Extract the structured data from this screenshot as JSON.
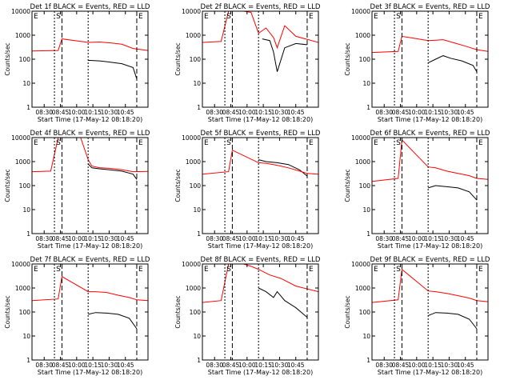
{
  "chart_data": [
    {
      "type": "line",
      "title": "Det 1f BLACK = Events, RED = LLD",
      "xlabel": "Start Time (17-May-12 08:18:20)",
      "ylabel": "Counts/sec",
      "yscale": "log",
      "ylim": [
        1,
        10000
      ],
      "xlim": [
        "08:20",
        "08:51"
      ],
      "x_ticks": [
        "08:30",
        "08:45",
        "10:00",
        "10:15",
        "10:30",
        "10:45"
      ],
      "y_ticks": [
        "1",
        "10",
        "100",
        "1000",
        "10000"
      ],
      "markers": [
        {
          "label": "E",
          "x": "08:20"
        },
        {
          "label": "S",
          "x": "08:26"
        },
        {
          "label": "",
          "x": "08:28"
        },
        {
          "label": "",
          "x": "08:35"
        },
        {
          "label": "E",
          "x": "08:48"
        },
        {
          "label": "",
          "x": "08:51"
        }
      ],
      "series": [
        {
          "name": "BLACK",
          "color": "#000000",
          "x": [
            "08:35",
            "08:38",
            "08:41",
            "08:44",
            "08:47",
            "08:48"
          ],
          "y": [
            90,
            85,
            75,
            65,
            45,
            15
          ]
        },
        {
          "name": "RED",
          "color": "#ff0000",
          "x": [
            "08:20",
            "08:27",
            "08:28",
            "08:35",
            "08:38",
            "08:41",
            "08:44",
            "08:47",
            "08:51"
          ],
          "y": [
            220,
            230,
            700,
            500,
            520,
            480,
            420,
            280,
            230
          ]
        }
      ]
    },
    {
      "type": "line",
      "title": "Det 2f BLACK = Events, RED = LLD",
      "xlabel": "Start Time (17-May-12 08:18:20)",
      "ylabel": "Counts/sec",
      "yscale": "log",
      "ylim": [
        1,
        10000
      ],
      "xlim": [
        "08:20",
        "08:51"
      ],
      "x_ticks": [
        "08:30",
        "08:45",
        "10:00",
        "10:15",
        "10:30",
        "10:45"
      ],
      "y_ticks": [
        "1",
        "10",
        "100",
        "1000",
        "10000"
      ],
      "markers": [
        {
          "label": "E",
          "x": "08:20"
        },
        {
          "label": "S",
          "x": "08:26"
        },
        {
          "label": "",
          "x": "08:28"
        },
        {
          "label": "",
          "x": "08:35"
        },
        {
          "label": "E",
          "x": "08:48"
        },
        {
          "label": "",
          "x": "08:51"
        }
      ],
      "series": [
        {
          "name": "BLACK",
          "color": "#000000",
          "x": [
            "08:36",
            "08:38",
            "08:39",
            "08:40",
            "08:42",
            "08:45",
            "08:48"
          ],
          "y": [
            700,
            600,
            200,
            30,
            300,
            450,
            400
          ]
        },
        {
          "name": "RED",
          "color": "#ff0000",
          "x": [
            "08:20",
            "08:25",
            "08:27",
            "08:29",
            "08:31",
            "08:33",
            "08:35",
            "08:37",
            "08:39",
            "08:40",
            "08:42",
            "08:45",
            "08:51"
          ],
          "y": [
            500,
            550,
            10000,
            10000,
            10000,
            9000,
            1200,
            2000,
            800,
            300,
            2500,
            900,
            500
          ]
        }
      ]
    },
    {
      "type": "line",
      "title": "Det 3f BLACK = Events, RED = LLD",
      "xlabel": "Start Time (17-May-12 08:18:20)",
      "ylabel": "Counts/sec",
      "yscale": "log",
      "ylim": [
        1,
        10000
      ],
      "xlim": [
        "08:20",
        "08:51"
      ],
      "x_ticks": [
        "08:30",
        "08:45",
        "10:00",
        "10:15",
        "10:30",
        "10:45"
      ],
      "y_ticks": [
        "1",
        "10",
        "100",
        "1000",
        "10000"
      ],
      "markers": [
        {
          "label": "E",
          "x": "08:20"
        },
        {
          "label": "S",
          "x": "08:26"
        },
        {
          "label": "",
          "x": "08:28"
        },
        {
          "label": "",
          "x": "08:35"
        },
        {
          "label": "E",
          "x": "08:48"
        },
        {
          "label": "",
          "x": "08:51"
        }
      ],
      "series": [
        {
          "name": "BLACK",
          "color": "#000000",
          "x": [
            "08:35",
            "08:37",
            "08:39",
            "08:41",
            "08:44",
            "08:47",
            "08:48"
          ],
          "y": [
            70,
            100,
            140,
            110,
            85,
            55,
            30
          ]
        },
        {
          "name": "RED",
          "color": "#ff0000",
          "x": [
            "08:20",
            "08:27",
            "08:28",
            "08:35",
            "08:37",
            "08:39",
            "08:42",
            "08:45",
            "08:48",
            "08:51"
          ],
          "y": [
            190,
            210,
            900,
            600,
            620,
            650,
            480,
            350,
            250,
            210
          ]
        }
      ]
    },
    {
      "type": "line",
      "title": "Det 4f BLACK = Events, RED = LLD",
      "xlabel": "Start Time (17-May-12 08:18:20)",
      "ylabel": "Counts/sec",
      "yscale": "log",
      "ylim": [
        1,
        10000
      ],
      "xlim": [
        "08:20",
        "08:51"
      ],
      "x_ticks": [
        "08:30",
        "08:45",
        "10:00",
        "10:15",
        "10:30",
        "10:45"
      ],
      "y_ticks": [
        "1",
        "10",
        "100",
        "1000",
        "10000"
      ],
      "markers": [
        {
          "label": "E",
          "x": "08:20"
        },
        {
          "label": "S",
          "x": "08:26"
        },
        {
          "label": "",
          "x": "08:28"
        },
        {
          "label": "",
          "x": "08:35"
        },
        {
          "label": "E",
          "x": "08:48"
        },
        {
          "label": "",
          "x": "08:51"
        }
      ],
      "series": [
        {
          "name": "BLACK",
          "color": "#000000",
          "x": [
            "08:35",
            "08:36",
            "08:38",
            "08:41",
            "08:44",
            "08:47",
            "08:48"
          ],
          "y": [
            800,
            550,
            500,
            450,
            400,
            300,
            180
          ]
        },
        {
          "name": "RED",
          "color": "#ff0000",
          "x": [
            "08:20",
            "08:25",
            "08:27",
            "08:29",
            "08:31",
            "08:33",
            "08:35",
            "08:36",
            "08:38",
            "08:41",
            "08:44",
            "08:47",
            "08:51"
          ],
          "y": [
            380,
            400,
            10000,
            10000,
            10000,
            10000,
            1200,
            650,
            560,
            520,
            460,
            380,
            390
          ]
        }
      ]
    },
    {
      "type": "line",
      "title": "Det 5f BLACK = Events, RED = LLD",
      "xlabel": "Start Time (17-May-12 08:18:20)",
      "ylabel": "Counts/sec",
      "yscale": "log",
      "ylim": [
        1,
        10000
      ],
      "xlim": [
        "08:20",
        "08:51"
      ],
      "x_ticks": [
        "08:30",
        "08:45",
        "10:00",
        "10:15",
        "10:30",
        "10:45"
      ],
      "y_ticks": [
        "1",
        "10",
        "100",
        "1000",
        "10000"
      ],
      "markers": [
        {
          "label": "E",
          "x": "08:20"
        },
        {
          "label": "S",
          "x": "08:26"
        },
        {
          "label": "",
          "x": "08:28"
        },
        {
          "label": "",
          "x": "08:35"
        },
        {
          "label": "E",
          "x": "08:48"
        },
        {
          "label": "",
          "x": "08:51"
        }
      ],
      "series": [
        {
          "name": "BLACK",
          "color": "#000000",
          "x": [
            "08:35",
            "08:37",
            "08:40",
            "08:43",
            "08:46",
            "08:48"
          ],
          "y": [
            1200,
            1000,
            900,
            750,
            450,
            250
          ]
        },
        {
          "name": "RED",
          "color": "#ff0000",
          "x": [
            "08:20",
            "08:27",
            "08:28",
            "08:35",
            "08:37",
            "08:40",
            "08:43",
            "08:46",
            "08:48",
            "08:51"
          ],
          "y": [
            300,
            380,
            3000,
            900,
            850,
            700,
            550,
            400,
            320,
            300
          ]
        }
      ]
    },
    {
      "type": "line",
      "title": "Det 6f BLACK = Events, RED = LLD",
      "xlabel": "Start Time (17-May-12 08:18:20)",
      "ylabel": "Counts/sec",
      "yscale": "log",
      "ylim": [
        1,
        10000
      ],
      "xlim": [
        "08:20",
        "08:51"
      ],
      "x_ticks": [
        "08:30",
        "08:45",
        "10:00",
        "10:15",
        "10:30",
        "10:45"
      ],
      "y_ticks": [
        "1",
        "10",
        "100",
        "1000",
        "10000"
      ],
      "markers": [
        {
          "label": "E",
          "x": "08:20"
        },
        {
          "label": "S",
          "x": "08:26"
        },
        {
          "label": "",
          "x": "08:28"
        },
        {
          "label": "",
          "x": "08:35"
        },
        {
          "label": "E",
          "x": "08:48"
        },
        {
          "label": "",
          "x": "08:51"
        }
      ],
      "series": [
        {
          "name": "BLACK",
          "color": "#000000",
          "x": [
            "08:35",
            "08:37",
            "08:40",
            "08:43",
            "08:46",
            "08:48"
          ],
          "y": [
            80,
            100,
            90,
            80,
            55,
            25
          ]
        },
        {
          "name": "RED",
          "color": "#ff0000",
          "x": [
            "08:20",
            "08:27",
            "08:28",
            "08:35",
            "08:37",
            "08:40",
            "08:43",
            "08:46",
            "08:48",
            "08:51"
          ],
          "y": [
            150,
            200,
            8000,
            600,
            550,
            400,
            320,
            260,
            200,
            180
          ]
        }
      ]
    },
    {
      "type": "line",
      "title": "Det 7f BLACK = Events, RED = LLD",
      "xlabel": "Start Time (17-May-12 08:18:20)",
      "ylabel": "Counts/sec",
      "yscale": "log",
      "ylim": [
        1,
        10000
      ],
      "xlim": [
        "08:20",
        "08:51"
      ],
      "x_ticks": [
        "08:30",
        "08:45",
        "10:00",
        "10:15",
        "10:30",
        "10:45"
      ],
      "y_ticks": [
        "1",
        "10",
        "100",
        "1000",
        "10000"
      ],
      "markers": [
        {
          "label": "E",
          "x": "08:20"
        },
        {
          "label": "S",
          "x": "08:26"
        },
        {
          "label": "",
          "x": "08:28"
        },
        {
          "label": "",
          "x": "08:35"
        },
        {
          "label": "E",
          "x": "08:48"
        },
        {
          "label": "",
          "x": "08:51"
        }
      ],
      "series": [
        {
          "name": "BLACK",
          "color": "#000000",
          "x": [
            "08:35",
            "08:37",
            "08:40",
            "08:43",
            "08:46",
            "08:48"
          ],
          "y": [
            80,
            95,
            90,
            80,
            55,
            20
          ]
        },
        {
          "name": "RED",
          "color": "#ff0000",
          "x": [
            "08:20",
            "08:27",
            "08:28",
            "08:35",
            "08:37",
            "08:40",
            "08:43",
            "08:46",
            "08:48",
            "08:51"
          ],
          "y": [
            300,
            350,
            3000,
            700,
            700,
            650,
            500,
            400,
            320,
            300
          ]
        }
      ]
    },
    {
      "type": "line",
      "title": "Det 8f BLACK = Events, RED = LLD",
      "xlabel": "Start Time (17-May-12 08:18:20)",
      "ylabel": "Counts/sec",
      "yscale": "log",
      "ylim": [
        1,
        10000
      ],
      "xlim": [
        "08:20",
        "08:51"
      ],
      "x_ticks": [
        "08:30",
        "08:45",
        "10:00",
        "10:15",
        "10:30",
        "10:45"
      ],
      "y_ticks": [
        "1",
        "10",
        "100",
        "1000",
        "10000"
      ],
      "markers": [
        {
          "label": "E",
          "x": "08:20"
        },
        {
          "label": "S",
          "x": "08:26"
        },
        {
          "label": "",
          "x": "08:28"
        },
        {
          "label": "",
          "x": "08:35"
        },
        {
          "label": "E",
          "x": "08:48"
        },
        {
          "label": "",
          "x": "08:51"
        }
      ],
      "series": [
        {
          "name": "BLACK",
          "color": "#000000",
          "x": [
            "08:35",
            "08:37",
            "08:39",
            "08:40",
            "08:42",
            "08:45",
            "08:48"
          ],
          "y": [
            1000,
            700,
            400,
            700,
            300,
            150,
            60
          ]
        },
        {
          "name": "RED",
          "color": "#ff0000",
          "x": [
            "08:20",
            "08:25",
            "08:27",
            "08:29",
            "08:31",
            "08:33",
            "08:35",
            "08:38",
            "08:41",
            "08:45",
            "08:51"
          ],
          "y": [
            250,
            300,
            10000,
            10000,
            10000,
            8000,
            6000,
            3500,
            2500,
            1200,
            700
          ]
        }
      ]
    },
    {
      "type": "line",
      "title": "Det 9f BLACK = Events, RED = LLD",
      "xlabel": "Start Time (17-May-12 08:18:20)",
      "ylabel": "Counts/sec",
      "yscale": "log",
      "ylim": [
        1,
        10000
      ],
      "xlim": [
        "08:20",
        "08:51"
      ],
      "x_ticks": [
        "08:30",
        "08:45",
        "10:00",
        "10:15",
        "10:30",
        "10:45"
      ],
      "y_ticks": [
        "1",
        "10",
        "100",
        "1000",
        "10000"
      ],
      "markers": [
        {
          "label": "E",
          "x": "08:20"
        },
        {
          "label": "S",
          "x": "08:26"
        },
        {
          "label": "",
          "x": "08:28"
        },
        {
          "label": "",
          "x": "08:35"
        },
        {
          "label": "E",
          "x": "08:48"
        },
        {
          "label": "",
          "x": "08:51"
        }
      ],
      "series": [
        {
          "name": "BLACK",
          "color": "#000000",
          "x": [
            "08:35",
            "08:37",
            "08:40",
            "08:43",
            "08:46",
            "08:48"
          ],
          "y": [
            70,
            95,
            90,
            80,
            50,
            20
          ]
        },
        {
          "name": "RED",
          "color": "#ff0000",
          "x": [
            "08:20",
            "08:27",
            "08:28",
            "08:35",
            "08:37",
            "08:40",
            "08:43",
            "08:46",
            "08:48",
            "08:51"
          ],
          "y": [
            250,
            320,
            6000,
            750,
            700,
            600,
            480,
            380,
            300,
            270
          ]
        }
      ]
    }
  ]
}
